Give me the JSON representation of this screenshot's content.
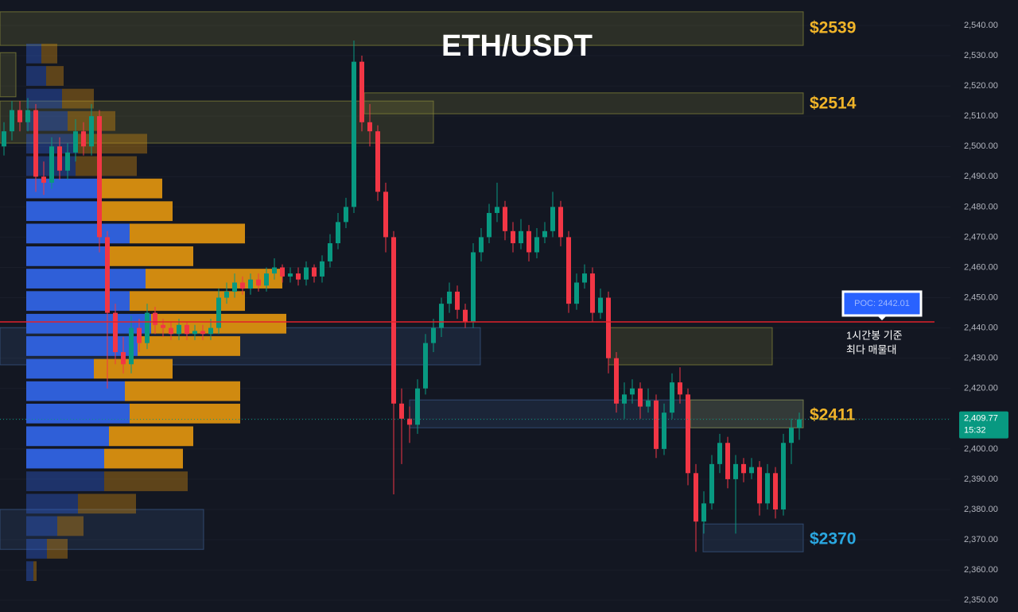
{
  "chart_data": {
    "type": "candlestick",
    "title": "ETH/USDT",
    "ylim": [
      2346.1,
      2548.4
    ],
    "yticks": [
      {
        "value": 2350,
        "label": "2,350.00"
      },
      {
        "value": 2360,
        "label": "2,360.00"
      },
      {
        "value": 2370,
        "label": "2,370.00"
      },
      {
        "value": 2380,
        "label": "2,380.00"
      },
      {
        "value": 2390,
        "label": "2,390.00"
      },
      {
        "value": 2400,
        "label": "2,400.00"
      },
      {
        "value": 2410,
        "label": "2,410.00"
      },
      {
        "value": 2420,
        "label": "2,420.00"
      },
      {
        "value": 2430,
        "label": "2,430.00"
      },
      {
        "value": 2440,
        "label": "2,440.00"
      },
      {
        "value": 2450,
        "label": "2,450.00"
      },
      {
        "value": 2460,
        "label": "2,460.00"
      },
      {
        "value": 2470,
        "label": "2,470.00"
      },
      {
        "value": 2480,
        "label": "2,480.00"
      },
      {
        "value": 2490,
        "label": "2,490.00"
      },
      {
        "value": 2500,
        "label": "2,500.00"
      },
      {
        "value": 2510,
        "label": "2,510.00"
      },
      {
        "value": 2520,
        "label": "2,520.00"
      },
      {
        "value": 2530,
        "label": "2,530.00"
      },
      {
        "value": 2540,
        "label": "2,540.00"
      }
    ],
    "up_color": "#089981",
    "down_color": "#f23645",
    "candles": [
      [
        2500,
        2508,
        2497,
        2505
      ],
      [
        2505,
        2515,
        2502,
        2512
      ],
      [
        2512,
        2515,
        2505,
        2508
      ],
      [
        2508,
        2516,
        2505,
        2512
      ],
      [
        2512,
        2514,
        2485,
        2490
      ],
      [
        2490,
        2495,
        2484,
        2488
      ],
      [
        2488,
        2503,
        2486,
        2500
      ],
      [
        2500,
        2503,
        2489,
        2492
      ],
      [
        2492,
        2501,
        2489,
        2498
      ],
      [
        2498,
        2509,
        2495,
        2505
      ],
      [
        2505,
        2508,
        2497,
        2500
      ],
      [
        2500,
        2514,
        2497,
        2510
      ],
      [
        2510,
        2512,
        2465,
        2470
      ],
      [
        2470,
        2472,
        2420,
        2445
      ],
      [
        2445,
        2448,
        2428,
        2432
      ],
      [
        2432,
        2437,
        2425,
        2428
      ],
      [
        2428,
        2444,
        2425,
        2440
      ],
      [
        2440,
        2443,
        2432,
        2435
      ],
      [
        2435,
        2448,
        2433,
        2445
      ],
      [
        2445,
        2447,
        2438,
        2441
      ],
      [
        2441,
        2443,
        2437,
        2440
      ],
      [
        2440,
        2442,
        2436,
        2438
      ],
      [
        2438,
        2443,
        2436,
        2441
      ],
      [
        2441,
        2442,
        2436,
        2438
      ],
      [
        2438,
        2441,
        2436,
        2439
      ],
      [
        2439,
        2441,
        2436,
        2438
      ],
      [
        2438,
        2443,
        2436,
        2440
      ],
      [
        2440,
        2453,
        2438,
        2450
      ],
      [
        2450,
        2455,
        2448,
        2452
      ],
      [
        2452,
        2458,
        2450,
        2455
      ],
      [
        2455,
        2457,
        2451,
        2453
      ],
      [
        2453,
        2458,
        2451,
        2456
      ],
      [
        2456,
        2458,
        2452,
        2454
      ],
      [
        2454,
        2460,
        2452,
        2458
      ],
      [
        2458,
        2463,
        2456,
        2460
      ],
      [
        2460,
        2461,
        2455,
        2457
      ],
      [
        2457,
        2460,
        2455,
        2458
      ],
      [
        2458,
        2460,
        2454,
        2456
      ],
      [
        2456,
        2462,
        2454,
        2460
      ],
      [
        2460,
        2461,
        2455,
        2457
      ],
      [
        2457,
        2464,
        2455,
        2462
      ],
      [
        2462,
        2471,
        2460,
        2468
      ],
      [
        2468,
        2478,
        2466,
        2475
      ],
      [
        2475,
        2483,
        2473,
        2480
      ],
      [
        2480,
        2535,
        2478,
        2528
      ],
      [
        2528,
        2530,
        2505,
        2508
      ],
      [
        2508,
        2514,
        2500,
        2505
      ],
      [
        2505,
        2507,
        2482,
        2485
      ],
      [
        2485,
        2488,
        2465,
        2470
      ],
      [
        2470,
        2472,
        2385,
        2415
      ],
      [
        2415,
        2420,
        2395,
        2410
      ],
      [
        2410,
        2414,
        2402,
        2408
      ],
      [
        2408,
        2423,
        2405,
        2420
      ],
      [
        2420,
        2438,
        2418,
        2435
      ],
      [
        2435,
        2443,
        2432,
        2440
      ],
      [
        2440,
        2450,
        2437,
        2448
      ],
      [
        2448,
        2455,
        2445,
        2452
      ],
      [
        2452,
        2454,
        2443,
        2446
      ],
      [
        2446,
        2448,
        2440,
        2442
      ],
      [
        2442,
        2468,
        2440,
        2465
      ],
      [
        2465,
        2473,
        2462,
        2470
      ],
      [
        2470,
        2481,
        2468,
        2478
      ],
      [
        2478,
        2488,
        2475,
        2480
      ],
      [
        2480,
        2482,
        2469,
        2472
      ],
      [
        2472,
        2475,
        2465,
        2468
      ],
      [
        2468,
        2476,
        2466,
        2472
      ],
      [
        2472,
        2474,
        2462,
        2465
      ],
      [
        2465,
        2473,
        2463,
        2470
      ],
      [
        2470,
        2475,
        2468,
        2472
      ],
      [
        2472,
        2485,
        2470,
        2480
      ],
      [
        2480,
        2482,
        2467,
        2470
      ],
      [
        2470,
        2472,
        2445,
        2448
      ],
      [
        2448,
        2458,
        2446,
        2455
      ],
      [
        2455,
        2461,
        2453,
        2458
      ],
      [
        2458,
        2460,
        2442,
        2445
      ],
      [
        2445,
        2453,
        2443,
        2450
      ],
      [
        2450,
        2452,
        2425,
        2430
      ],
      [
        2430,
        2432,
        2412,
        2415
      ],
      [
        2415,
        2422,
        2410,
        2418
      ],
      [
        2418,
        2423,
        2415,
        2420
      ],
      [
        2420,
        2422,
        2410,
        2414
      ],
      [
        2414,
        2420,
        2412,
        2416
      ],
      [
        2416,
        2418,
        2397,
        2400
      ],
      [
        2400,
        2415,
        2398,
        2412
      ],
      [
        2412,
        2425,
        2410,
        2422
      ],
      [
        2422,
        2427,
        2415,
        2418
      ],
      [
        2418,
        2420,
        2388,
        2392
      ],
      [
        2392,
        2395,
        2366,
        2376
      ],
      [
        2376,
        2386,
        2372,
        2382
      ],
      [
        2382,
        2398,
        2380,
        2395
      ],
      [
        2395,
        2405,
        2392,
        2402
      ],
      [
        2402,
        2404,
        2387,
        2390
      ],
      [
        2390,
        2398,
        2372,
        2395
      ],
      [
        2395,
        2397,
        2389,
        2392
      ],
      [
        2392,
        2397,
        2390,
        2394
      ],
      [
        2394,
        2396,
        2378,
        2382
      ],
      [
        2382,
        2395,
        2380,
        2392
      ],
      [
        2392,
        2394,
        2377,
        2380
      ],
      [
        2380,
        2405,
        2378,
        2402
      ],
      [
        2402,
        2410,
        2395,
        2407
      ],
      [
        2407,
        2412,
        2403,
        2409.77
      ]
    ],
    "profile": {
      "levels": [
        2530.7,
        2523.3,
        2515.8,
        2508.4,
        2500.9,
        2493.5,
        2486.1,
        2478.6,
        2471.2,
        2463.7,
        2456.3,
        2448.9,
        2441.4,
        2434.0,
        2426.5,
        2419.1,
        2411.7,
        2404.2,
        2396.8,
        2389.3,
        2381.9,
        2374.5,
        2367.0,
        2359.6
      ],
      "buy": [
        19,
        25,
        45,
        52,
        65,
        62,
        95,
        89,
        130,
        100,
        150,
        130,
        157,
        140,
        85,
        124,
        130,
        104,
        98,
        98,
        65,
        39,
        26,
        9
      ],
      "sell": [
        20,
        22,
        40,
        60,
        87,
        77,
        76,
        95,
        145,
        110,
        172,
        145,
        170,
        129,
        99,
        145,
        139,
        106,
        99,
        105,
        73,
        33,
        26,
        4
      ],
      "buy_color": "#2f5fd8",
      "sell_color": "#d08a10",
      "value_area": [
        2396.8,
        2486.1
      ]
    },
    "zones": [
      {
        "top": 2544.5,
        "bottom": 2533.4,
        "color": "#8a8a3a",
        "level": {
          "value": 2539,
          "label": "$2539"
        },
        "label_color": "#f0b429"
      },
      {
        "top": 2531.0,
        "bottom": 2516.4,
        "color": "#8a8a3a"
      },
      {
        "top": 2515.0,
        "bottom": 2501.1,
        "color": "#8a8a3a"
      },
      {
        "top": 2517.7,
        "bottom": 2510.8,
        "color": "#8a8a3a",
        "level": {
          "value": 2514,
          "label": "$2514"
        },
        "label_color": "#f0b429"
      },
      {
        "top": 2440.1,
        "bottom": 2427.8,
        "color": "#3b5a8a"
      },
      {
        "top": 2440.1,
        "bottom": 2427.8,
        "color": "#8a8a3a"
      },
      {
        "top": 2416.2,
        "bottom": 2407.0,
        "color": "#3b5a8a"
      },
      {
        "top": 2416.2,
        "bottom": 2407.0,
        "color": "#8a8a3a",
        "level": {
          "value": 2411,
          "label": "$2411"
        },
        "label_color": "#f0b429"
      },
      {
        "top": 2380.0,
        "bottom": 2366.8,
        "color": "#3b5a8a"
      },
      {
        "top": 2375.2,
        "bottom": 2366.0,
        "color": "#3b5a8a",
        "level": {
          "value": 2370,
          "label": "$2370"
        },
        "label_color": "#2aa7e0"
      }
    ],
    "poc": {
      "value": 2442.01,
      "label": "POC: 2442.01",
      "color": "#e0202a"
    },
    "annotation": [
      "1시간봉 기준",
      "최다 매물대"
    ],
    "last_price": {
      "value": 2409.77,
      "label": "2,409.77"
    },
    "countdown": "15:32"
  }
}
